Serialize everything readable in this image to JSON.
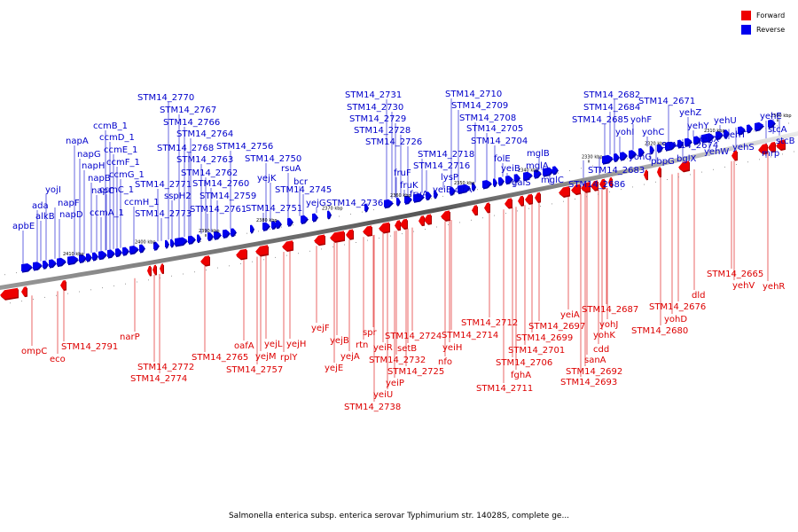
{
  "caption": "Salmonella enterica subsp. enterica serovar Typhimurium str. 14028S, complete ge...",
  "legend": [
    {
      "label": "Forward",
      "color": "#ee0000"
    },
    {
      "label": "Reverse",
      "color": "#0000ee"
    }
  ],
  "ticks": [
    "2410 kbp",
    "2400 kbp",
    "2390 kbp",
    "2380 kbp",
    "2370 kbp",
    "2360 kbp",
    "2350 kbp",
    "2340 kbp",
    "2330 kbp",
    "2320 kbp",
    "2310 kbp",
    "2300 kbp"
  ],
  "reverse_genes": [
    "apbE",
    "ada",
    "alkB",
    "yojI",
    "napF",
    "napD",
    "napA",
    "napG",
    "napH",
    "napB",
    "napC",
    "ccmA_1",
    "ccmB_1",
    "ccmD_1",
    "ccmE_1",
    "ccmF_1",
    "ccmC_1",
    "ccmG_1",
    "ccmH_1",
    "STM14_2770",
    "STM14_2767",
    "STM14_2766",
    "STM14_2764",
    "STM14_2768",
    "STM14_2763",
    "STM14_2762",
    "STM14_2771",
    "sspH2",
    "STM14_2760",
    "STM14_2773",
    "STM14_2759",
    "STM14_2761",
    "STM14_2756",
    "STM14_2750",
    "rsuA",
    "yejK",
    "bcr",
    "STM14_2745",
    "yejG",
    "STM14_2751",
    "STM14_2736",
    "STM14_2731",
    "STM14_2730",
    "STM14_2729",
    "STM14_2728",
    "STM14_2726",
    "fruF",
    "fruK",
    "fruA",
    "STM14_2718",
    "STM14_2716",
    "lysP",
    "yeiE",
    "cirA",
    "STM14_2710",
    "STM14_2709",
    "STM14_2708",
    "STM14_2705",
    "STM14_2704",
    "folE",
    "yeiB",
    "mglB",
    "mglA",
    "galS",
    "mglC",
    "STM14_2682",
    "STM14_2684",
    "STM14_2685",
    "yohF",
    "yohI",
    "yohC",
    "yohG",
    "STM14_2674",
    "pbpG",
    "bglX",
    "STM14_2683",
    "STM14_2686",
    "STM14_2671",
    "yehZ",
    "yehY",
    "yehX",
    "yehW",
    "yehU",
    "yehT",
    "yehS",
    "yehE",
    "stcA",
    "stcB",
    "mrp"
  ],
  "forward_genes": [
    "ompC",
    "eco",
    "STM14_2791",
    "narP",
    "STM14_2772",
    "STM14_2774",
    "STM14_2765",
    "oafA",
    "yejL",
    "yejH",
    "yejM",
    "rplY",
    "STM14_2757",
    "yejF",
    "yejB",
    "yejA",
    "yejE",
    "rtn",
    "spr",
    "yeiR",
    "yeiU",
    "yeiP",
    "STM14_2738",
    "STM14_2732",
    "STM14_2724",
    "setB",
    "STM14_2725",
    "nfo",
    "yeiH",
    "STM14_2714",
    "STM14_2712",
    "STM14_2706",
    "fghA",
    "STM14_2711",
    "STM14_2701",
    "STM14_2699",
    "STM14_2697",
    "yeiA",
    "STM14_2687",
    "yohJ",
    "yohK",
    "cdd",
    "sanA",
    "STM14_2692",
    "STM14_2693",
    "STM14_2680",
    "yohD",
    "STM14_2676",
    "dld",
    "STM14_2665",
    "yehV",
    "yehR"
  ]
}
